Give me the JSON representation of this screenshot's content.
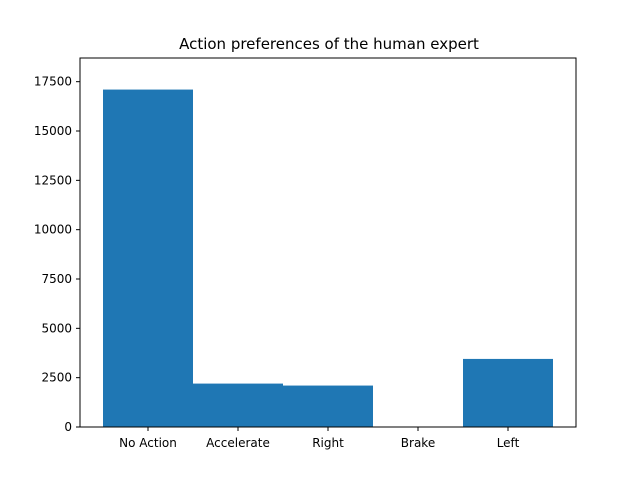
{
  "chart_data": {
    "type": "bar",
    "title": "Action preferences of the human expert",
    "xlabel": "",
    "ylabel": "",
    "categories": [
      "No Action",
      "Accelerate",
      "Right",
      "Brake",
      "Left"
    ],
    "values": [
      17100,
      2200,
      2100,
      0,
      3450
    ],
    "ylim": [
      0,
      18700
    ],
    "yticks": [
      0,
      2500,
      5000,
      7500,
      10000,
      12500,
      15000,
      17500
    ],
    "grid": false,
    "legend": "none",
    "bar_color": "#1f77b4"
  }
}
